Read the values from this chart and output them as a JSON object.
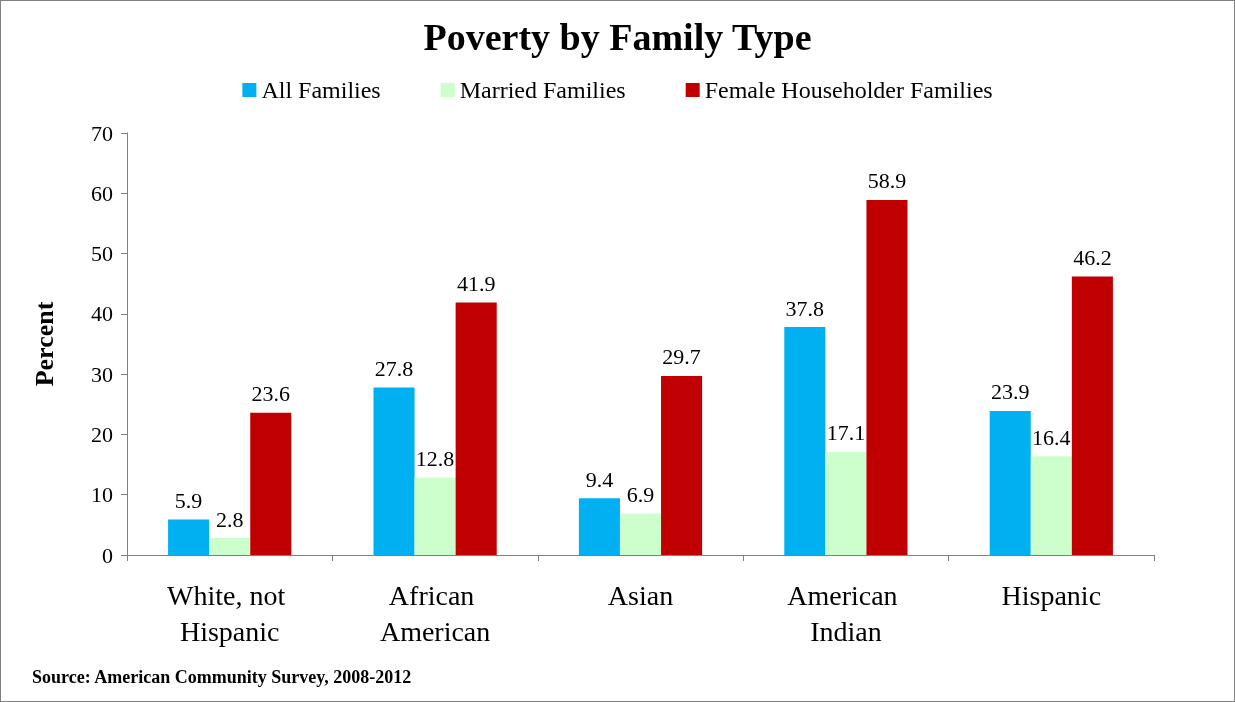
{
  "chart_data": {
    "type": "bar",
    "title": "Poverty by Family Type",
    "ylabel": "Percent",
    "categories": [
      "White, not Hispanic",
      "African American",
      "Asian",
      "American Indian",
      "Hispanic"
    ],
    "series": [
      {
        "name": "All Families",
        "color": "#00b0f0",
        "values": [
          5.9,
          27.8,
          9.4,
          37.8,
          23.9
        ]
      },
      {
        "name": "Married Families",
        "color": "#ccffcc",
        "values": [
          2.8,
          12.8,
          6.9,
          17.1,
          16.4
        ]
      },
      {
        "name": "Female Householder Families",
        "color": "#c00000",
        "values": [
          23.6,
          41.9,
          29.7,
          58.9,
          46.2
        ]
      }
    ],
    "ylim": [
      0,
      70
    ],
    "yticks": [
      0,
      10,
      20,
      30,
      40,
      50,
      60,
      70
    ],
    "grid": false,
    "legend": "top",
    "data_labels": true,
    "annotations": [
      "Source: American Community Survey, 2008-2012"
    ]
  }
}
